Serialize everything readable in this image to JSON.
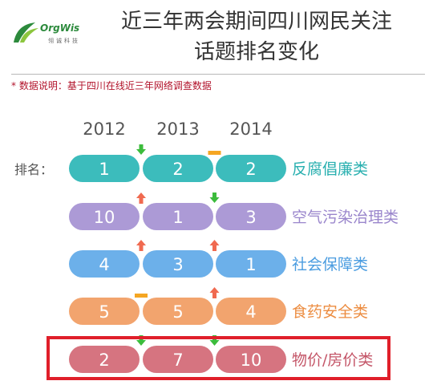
{
  "brand": {
    "name": "OrgWis",
    "subtitle": "翎诚科技",
    "colors": {
      "green": "#2c8a3c",
      "lime": "#8cc63e"
    }
  },
  "title_lines": [
    "近三年两会期间四川网民关注",
    "话题排名变化"
  ],
  "note": "* 数据说明：基于四川在线近三年网络调查数据",
  "highlight_color": "#e01f2a",
  "chart_data": {
    "type": "table",
    "row_label": "排名：",
    "years": [
      "2012",
      "2013",
      "2014"
    ],
    "topics": [
      {
        "name": "反腐倡廉类",
        "ranks": [
          1,
          2,
          2
        ],
        "color": "#3cbcbc",
        "label_color": "#2ab0b0",
        "changes": [
          "down",
          "same"
        ]
      },
      {
        "name": "空气污染治理类",
        "ranks": [
          10,
          1,
          3
        ],
        "color": "#ac9ad6",
        "label_color": "#9a86cc",
        "changes": [
          "up",
          "down"
        ]
      },
      {
        "name": "社会保障类",
        "ranks": [
          4,
          3,
          1
        ],
        "color": "#6cb0ea",
        "label_color": "#4a9ce0",
        "changes": [
          "up",
          "up"
        ]
      },
      {
        "name": "食药安全类",
        "ranks": [
          5,
          5,
          4
        ],
        "color": "#f2a46e",
        "label_color": "#ec8c40",
        "changes": [
          "same",
          "up"
        ]
      },
      {
        "name": "物价/房价类",
        "ranks": [
          2,
          7,
          10
        ],
        "color": "#d67480",
        "label_color": "#c45668",
        "changes": [
          "down",
          "down"
        ],
        "highlighted": true
      }
    ],
    "indicator_colors": {
      "up": "#f06a50",
      "down": "#3cbc3c",
      "same": "#f5a623"
    }
  }
}
